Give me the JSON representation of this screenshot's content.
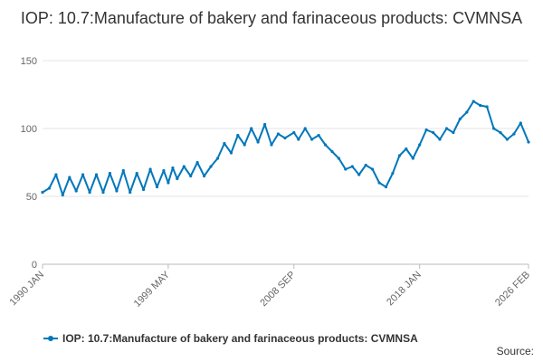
{
  "chart_data": {
    "type": "line",
    "title": "IOP: 10.7:Manufacture of bakery and farinaceous products: CVMNSA",
    "xlabel": "",
    "ylabel": "",
    "x_tick_labels": [
      "1990 JAN",
      "1999 MAY",
      "2008 SEP",
      "2018 JAN",
      "2026 FEB"
    ],
    "x_range": [
      "1990 JAN",
      "2026 FEB"
    ],
    "ylim": [
      0,
      150
    ],
    "y_ticks": [
      0,
      50,
      100,
      150
    ],
    "grid": "horizontal",
    "legend_position": "bottom-left",
    "series": [
      {
        "name": "IOP: 10.7:Manufacture of bakery and farinaceous products: CVMNSA",
        "color": "#0077bb",
        "points": [
          [
            "1990 JAN",
            53
          ],
          [
            "1990 JUL",
            56
          ],
          [
            "1991 JAN",
            66
          ],
          [
            "1991 JUL",
            51
          ],
          [
            "1992 JAN",
            64
          ],
          [
            "1992 JUL",
            54
          ],
          [
            "1993 JAN",
            66
          ],
          [
            "1993 JUL",
            53
          ],
          [
            "1994 JAN",
            66
          ],
          [
            "1994 JUL",
            53
          ],
          [
            "1995 JAN",
            67
          ],
          [
            "1995 JUL",
            54
          ],
          [
            "1996 JAN",
            69
          ],
          [
            "1996 JUL",
            53
          ],
          [
            "1997 JAN",
            67
          ],
          [
            "1997 JUL",
            55
          ],
          [
            "1998 JAN",
            70
          ],
          [
            "1998 JUL",
            57
          ],
          [
            "1999 JAN",
            69
          ],
          [
            "1999 MAY",
            60
          ],
          [
            "1999 SEP",
            71
          ],
          [
            "2000 JAN",
            63
          ],
          [
            "2000 JUL",
            72
          ],
          [
            "2001 JAN",
            65
          ],
          [
            "2001 JUL",
            75
          ],
          [
            "2002 JAN",
            65
          ],
          [
            "2002 JUL",
            72
          ],
          [
            "2003 JAN",
            78
          ],
          [
            "2003 JUL",
            89
          ],
          [
            "2004 JAN",
            82
          ],
          [
            "2004 JUL",
            95
          ],
          [
            "2005 JAN",
            88
          ],
          [
            "2005 JUL",
            100
          ],
          [
            "2006 JAN",
            90
          ],
          [
            "2006 JUL",
            103
          ],
          [
            "2007 JAN",
            88
          ],
          [
            "2007 JUL",
            96
          ],
          [
            "2008 JAN",
            93
          ],
          [
            "2008 SEP",
            97
          ],
          [
            "2009 JAN",
            92
          ],
          [
            "2009 JUL",
            100
          ],
          [
            "2010 JAN",
            92
          ],
          [
            "2010 JUL",
            95
          ],
          [
            "2011 JAN",
            88
          ],
          [
            "2011 JUL",
            83
          ],
          [
            "2012 JAN",
            78
          ],
          [
            "2012 JUL",
            70
          ],
          [
            "2013 JAN",
            72
          ],
          [
            "2013 JUL",
            66
          ],
          [
            "2014 JAN",
            73
          ],
          [
            "2014 JUL",
            70
          ],
          [
            "2015 JAN",
            60
          ],
          [
            "2015 JUL",
            57
          ],
          [
            "2016 JAN",
            67
          ],
          [
            "2016 JUL",
            80
          ],
          [
            "2017 JAN",
            85
          ],
          [
            "2017 JUL",
            78
          ],
          [
            "2018 JAN",
            88
          ],
          [
            "2018 JUL",
            99
          ],
          [
            "2019 JAN",
            97
          ],
          [
            "2019 JUL",
            92
          ],
          [
            "2020 JAN",
            100
          ],
          [
            "2020 JUL",
            97
          ],
          [
            "2021 JAN",
            107
          ],
          [
            "2021 JUL",
            112
          ],
          [
            "2022 JAN",
            120
          ],
          [
            "2022 JUL",
            117
          ],
          [
            "2023 JAN",
            116
          ],
          [
            "2023 JUL",
            100
          ],
          [
            "2024 JAN",
            97
          ],
          [
            "2024 JUL",
            92
          ],
          [
            "2025 JAN",
            96
          ],
          [
            "2025 JUL",
            104
          ],
          [
            "2026 FEB",
            90
          ]
        ]
      }
    ]
  },
  "legend": {
    "label": "IOP: 10.7:Manufacture of bakery and farinaceous products: CVMNSA"
  },
  "source": {
    "label": "Source:"
  }
}
